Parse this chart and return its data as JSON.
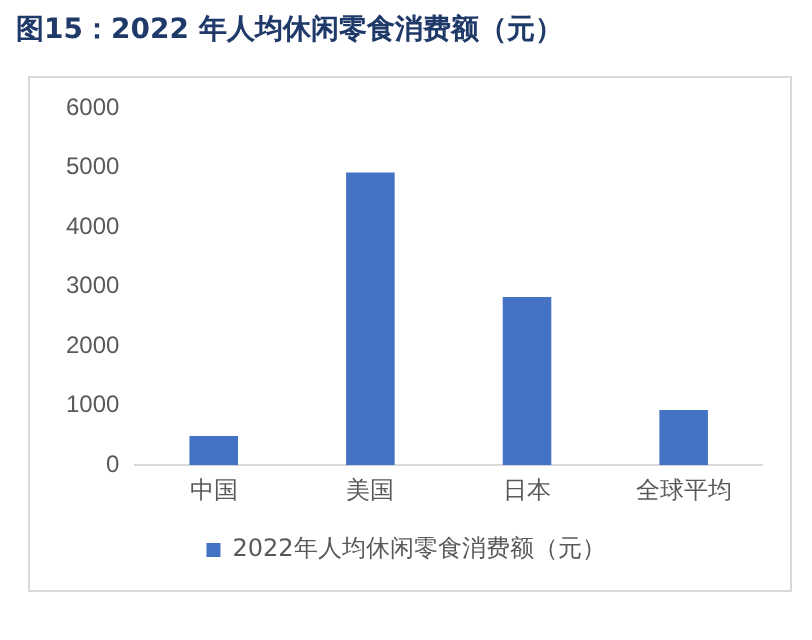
{
  "chart_data": {
    "type": "bar",
    "title": "图15：2022 年人均休闲零食消费额（元）",
    "categories": [
      "中国",
      "美国",
      "日本",
      "全球平均"
    ],
    "series": [
      {
        "name": "2022年人均休闲零食消费额（元）",
        "color": "#4472c4",
        "values": [
          490,
          4920,
          2830,
          930
        ]
      }
    ],
    "ylim": [
      0,
      6000
    ],
    "yticks": [
      0,
      1000,
      2000,
      3000,
      4000,
      5000,
      6000
    ],
    "grid": false,
    "legend": "bottom"
  }
}
